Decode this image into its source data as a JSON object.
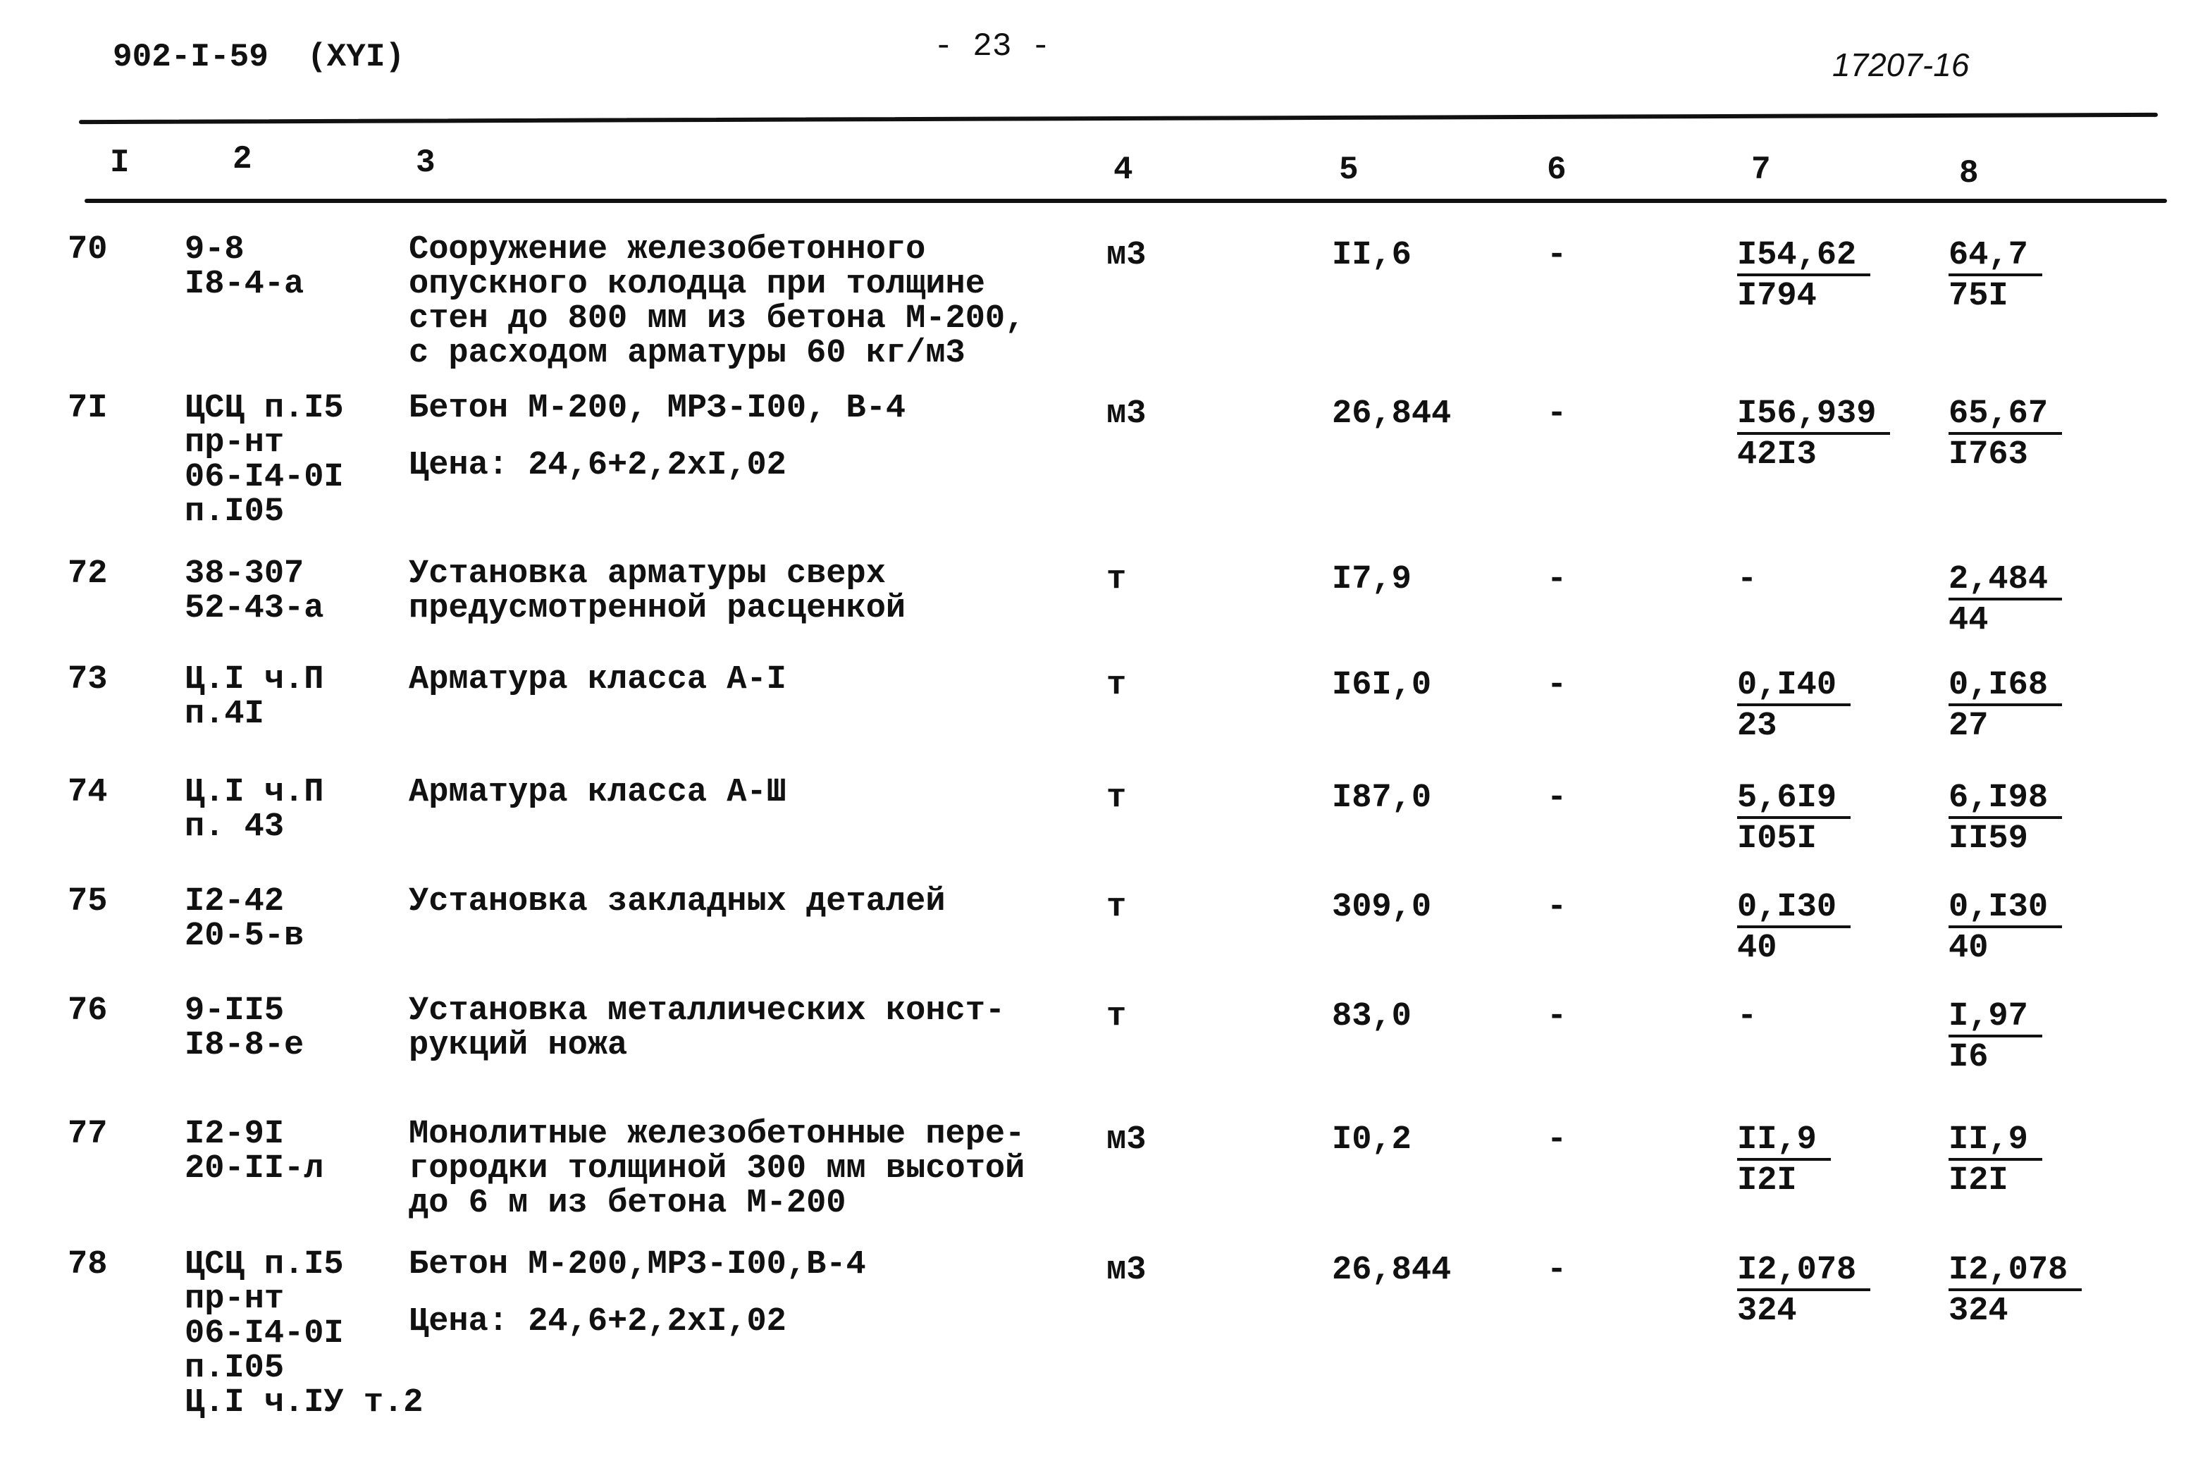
{
  "header": {
    "doc_code": "902-I-59  (XYI)",
    "page_number": "- 23 -",
    "sheet_ref": "17207-16"
  },
  "columns": [
    "I",
    "2",
    "3",
    "4",
    "5",
    "6",
    "7",
    "8"
  ],
  "rows": [
    {
      "num": "70",
      "code": [
        "9-8",
        "I8-4-a"
      ],
      "desc": [
        "Сооружение железобетонного",
        "опускного колодца при толщине",
        "стен до 800 мм из бетона М-200,",
        "с расходом арматуры 60 кг/м3"
      ],
      "desc2": [],
      "unit": "м3",
      "qty": "II,6",
      "c6": "-",
      "c7": {
        "top": "I54,62",
        "bottom": "I794"
      },
      "c8": {
        "top": "64,7",
        "bottom": "75I"
      }
    },
    {
      "num": "7I",
      "code": [
        "ЦСЦ п.I5",
        "пр-нт",
        "06-I4-0I",
        "п.I05"
      ],
      "desc": [
        "Бетон М-200, МРЗ-I00, В-4"
      ],
      "desc2": [
        "Цена: 24,6+2,2xI,02"
      ],
      "unit": "м3",
      "qty": "26,844",
      "c6": "-",
      "c7": {
        "top": "I56,939",
        "bottom": "42I3"
      },
      "c8": {
        "top": "65,67",
        "bottom": "I763"
      }
    },
    {
      "num": "72",
      "code": [
        "38-307",
        "52-43-a"
      ],
      "desc": [
        "Установка арматуры сверх",
        "предусмотренной расценкой"
      ],
      "desc2": [],
      "unit": "т",
      "qty": "I7,9",
      "c6": "-",
      "c7": {
        "dash": "-"
      },
      "c8": {
        "top": "2,484",
        "bottom": "44"
      }
    },
    {
      "num": "73",
      "code": [
        "Ц.I ч.П",
        "п.4I"
      ],
      "desc": [
        "Арматура класса А-I"
      ],
      "desc2": [],
      "unit": "т",
      "qty": "I6I,0",
      "c6": "-",
      "c7": {
        "top": "0,I40",
        "bottom": "23"
      },
      "c8": {
        "top": "0,I68",
        "bottom": "27"
      }
    },
    {
      "num": "74",
      "code": [
        "Ц.I ч.П",
        "п. 43"
      ],
      "desc": [
        "Арматура класса А-Ш"
      ],
      "desc2": [],
      "unit": "т",
      "qty": "I87,0",
      "c6": "-",
      "c7": {
        "top": "5,6I9",
        "bottom": "I05I"
      },
      "c8": {
        "top": "6,I98",
        "bottom": "II59"
      }
    },
    {
      "num": "75",
      "code": [
        "I2-42",
        "20-5-в"
      ],
      "desc": [
        "Установка закладных деталей"
      ],
      "desc2": [],
      "unit": "т",
      "qty": "309,0",
      "c6": "-",
      "c7": {
        "top": "0,I30",
        "bottom": "40"
      },
      "c8": {
        "top": "0,I30",
        "bottom": "40"
      }
    },
    {
      "num": "76",
      "code": [
        "9-II5",
        "I8-8-e"
      ],
      "desc": [
        "Установка металлических конст-",
        "рукций ножа"
      ],
      "desc2": [],
      "unit": "т",
      "qty": "83,0",
      "c6": "-",
      "c7": {
        "dash": "-"
      },
      "c8": {
        "top": "I,97",
        "bottom": "I6"
      }
    },
    {
      "num": "77",
      "code": [
        "I2-9I",
        "20-II-л"
      ],
      "desc": [
        "Монолитные железобетонные пере-",
        "городки толщиной 300 мм высотой",
        "до 6 м из бетона М-200"
      ],
      "desc2": [],
      "unit": "м3",
      "qty": "I0,2",
      "c6": "-",
      "c7": {
        "top": "II,9",
        "bottom": "I2I"
      },
      "c8": {
        "top": "II,9",
        "bottom": "I2I"
      }
    },
    {
      "num": "78",
      "code": [
        "ЦСЦ п.I5",
        "пр-нт",
        "06-I4-0I",
        "п.I05",
        "Ц.I ч.IУ т.2"
      ],
      "desc": [
        "Бетон М-200,МРЗ-I00,В-4"
      ],
      "desc2": [
        "Цена: 24,6+2,2xI,02"
      ],
      "unit": "м3",
      "qty": "26,844",
      "c6": "-",
      "c7": {
        "top": "I2,078",
        "bottom": "324"
      },
      "c8": {
        "top": "I2,078",
        "bottom": "324"
      }
    }
  ]
}
